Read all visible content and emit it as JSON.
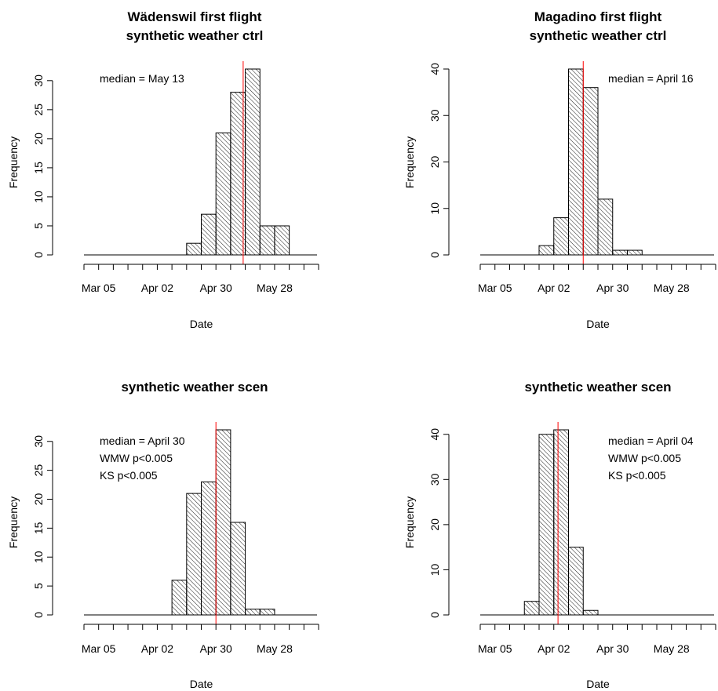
{
  "chart_data": [
    {
      "type": "bar",
      "title_lines": [
        "Wädenswil  first flight",
        "synthetic weather ctrl"
      ],
      "xlabel": "Date",
      "ylabel": "Frequency",
      "x_ticklabels": [
        "Mar 05",
        "Apr 02",
        "Apr 30",
        "May 28"
      ],
      "y_ticks": [
        0,
        5,
        10,
        15,
        20,
        25,
        30
      ],
      "ylim": [
        0,
        32
      ],
      "bin_width_days": 7,
      "bins": [
        {
          "start": "2001-04-16",
          "count": 2
        },
        {
          "start": "2001-04-23",
          "count": 7
        },
        {
          "start": "2001-04-30",
          "count": 21
        },
        {
          "start": "2001-05-07",
          "count": 28
        },
        {
          "start": "2001-05-14",
          "count": 32
        },
        {
          "start": "2001-05-21",
          "count": 5
        },
        {
          "start": "2001-05-28",
          "count": 5
        }
      ],
      "median_date": "2001-05-13",
      "median_color": "#ff0000",
      "annotations": [
        "median = May 13"
      ]
    },
    {
      "type": "bar",
      "title_lines": [
        "Magadino  first flight",
        "synthetic weather ctrl"
      ],
      "xlabel": "Date",
      "ylabel": "Frequency",
      "x_ticklabels": [
        "Mar 05",
        "Apr 02",
        "Apr 30",
        "May 28"
      ],
      "y_ticks": [
        0,
        10,
        20,
        30,
        40
      ],
      "ylim": [
        0,
        40
      ],
      "bin_width_days": 7,
      "bins": [
        {
          "start": "2001-03-26",
          "count": 2
        },
        {
          "start": "2001-04-02",
          "count": 8
        },
        {
          "start": "2001-04-09",
          "count": 40
        },
        {
          "start": "2001-04-16",
          "count": 36
        },
        {
          "start": "2001-04-23",
          "count": 12
        },
        {
          "start": "2001-04-30",
          "count": 1
        },
        {
          "start": "2001-05-07",
          "count": 1
        }
      ],
      "median_date": "2001-04-16",
      "median_color": "#ff0000",
      "annotations": [
        "median = April 16"
      ]
    },
    {
      "type": "bar",
      "title_lines": [
        "synthetic weather scen"
      ],
      "xlabel": "Date",
      "ylabel": "Frequency",
      "x_ticklabels": [
        "Mar 05",
        "Apr 02",
        "Apr 30",
        "May 28"
      ],
      "y_ticks": [
        0,
        5,
        10,
        15,
        20,
        25,
        30
      ],
      "ylim": [
        0,
        32
      ],
      "bin_width_days": 7,
      "bins": [
        {
          "start": "2001-04-09",
          "count": 6
        },
        {
          "start": "2001-04-16",
          "count": 21
        },
        {
          "start": "2001-04-23",
          "count": 23
        },
        {
          "start": "2001-04-30",
          "count": 32
        },
        {
          "start": "2001-05-07",
          "count": 16
        },
        {
          "start": "2001-05-14",
          "count": 1
        },
        {
          "start": "2001-05-21",
          "count": 1
        }
      ],
      "median_date": "2001-04-30",
      "median_color": "#ff0000",
      "annotations": [
        "median = April 30",
        "WMW p<0.005",
        "KS p<0.005"
      ]
    },
    {
      "type": "bar",
      "title_lines": [
        "synthetic weather scen"
      ],
      "xlabel": "Date",
      "ylabel": "Frequency",
      "x_ticklabels": [
        "Mar 05",
        "Apr 02",
        "Apr 30",
        "May 28"
      ],
      "y_ticks": [
        0,
        10,
        20,
        30,
        40
      ],
      "ylim": [
        0,
        41
      ],
      "bin_width_days": 7,
      "bins": [
        {
          "start": "2001-03-19",
          "count": 3
        },
        {
          "start": "2001-03-26",
          "count": 40
        },
        {
          "start": "2001-04-02",
          "count": 41
        },
        {
          "start": "2001-04-09",
          "count": 15
        },
        {
          "start": "2001-04-16",
          "count": 1
        }
      ],
      "median_date": "2001-04-04",
      "median_color": "#ff0000",
      "annotations": [
        "median = April 04",
        "WMW p<0.005",
        "KS p<0.005"
      ]
    }
  ]
}
